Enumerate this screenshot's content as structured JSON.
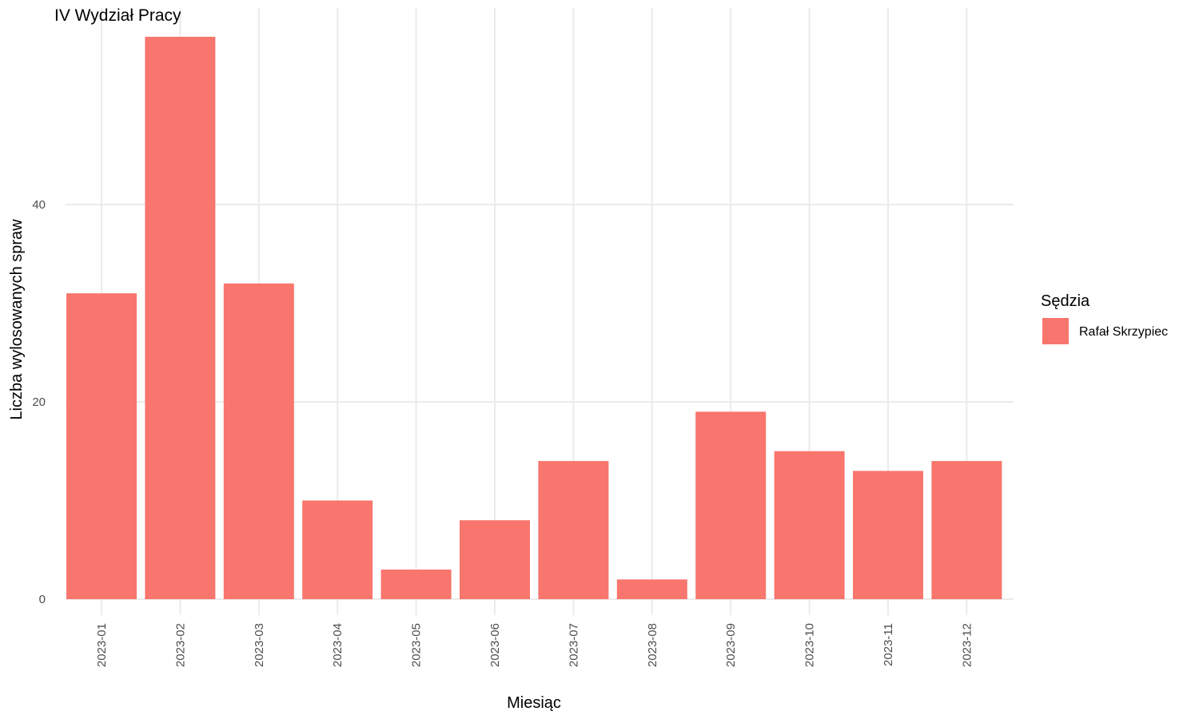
{
  "chart_data": {
    "type": "bar",
    "title": "IV Wydział Pracy",
    "xlabel": "Miesiąc",
    "ylabel": "Liczba wylosowanych spraw",
    "categories": [
      "2023-01",
      "2023-02",
      "2023-03",
      "2023-04",
      "2023-05",
      "2023-06",
      "2023-07",
      "2023-08",
      "2023-09",
      "2023-10",
      "2023-11",
      "2023-12"
    ],
    "series": [
      {
        "name": "Rafał Skrzypiec",
        "values": [
          31,
          57,
          32,
          10,
          3,
          8,
          14,
          2,
          19,
          15,
          13,
          14
        ],
        "color": "#F8766D"
      }
    ],
    "y_ticks": [
      0,
      20,
      40
    ],
    "ylim": [
      0,
      57
    ],
    "grid": true,
    "legend": {
      "title": "Sędzia",
      "position": "right"
    }
  }
}
